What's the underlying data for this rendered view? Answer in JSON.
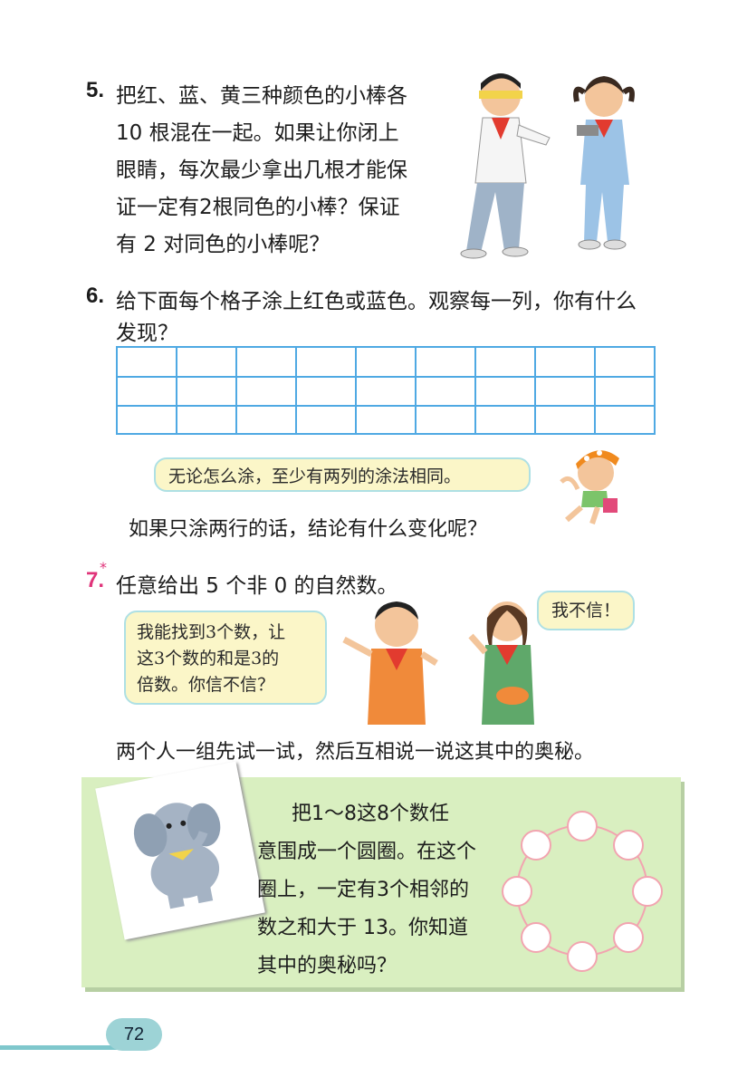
{
  "p5": {
    "number": "5.",
    "lines": [
      "把红、蓝、黄三种颜色的小棒各",
      "10 根混在一起。如果让你闭上",
      "眼睛，每次最少拿出几根才能保",
      "证一定有2根同色的小棒？保证",
      "有 2 对同色的小棒呢？"
    ]
  },
  "p6": {
    "number": "6.",
    "line1": "给下面每个格子涂上红色或蓝色。观察每一列，你有什么",
    "line2": "发现？",
    "bubble": "无论怎么涂，至少有两列的涂法相同。",
    "follow": "如果只涂两行的话，结论有什么变化呢？"
  },
  "p7": {
    "number": "7.",
    "star": "*",
    "text": "任意给出 5 个非 0 的自然数。",
    "boy_bubble": [
      "我能找到3个数，让",
      "这3个数的和是3的",
      "倍数。你信不信？"
    ],
    "girl_bubble": "我不信！",
    "follow": "两个人一组先试一试，然后互相说一说这其中的奥秘。"
  },
  "box": {
    "lines": [
      "把1～8这8个数任",
      "意围成一个圆圈。在这个",
      "圈上，一定有3个相邻的",
      "数之和大于 13。你知道",
      "其中的奥秘吗？"
    ]
  },
  "page_number": "72",
  "colors": {
    "grid": "#4fa9e3",
    "box_bg": "#d9efc0",
    "bubble_bg": "#fbf6c8",
    "star": "#e0347a",
    "page_tab": "#9dd3d6"
  }
}
